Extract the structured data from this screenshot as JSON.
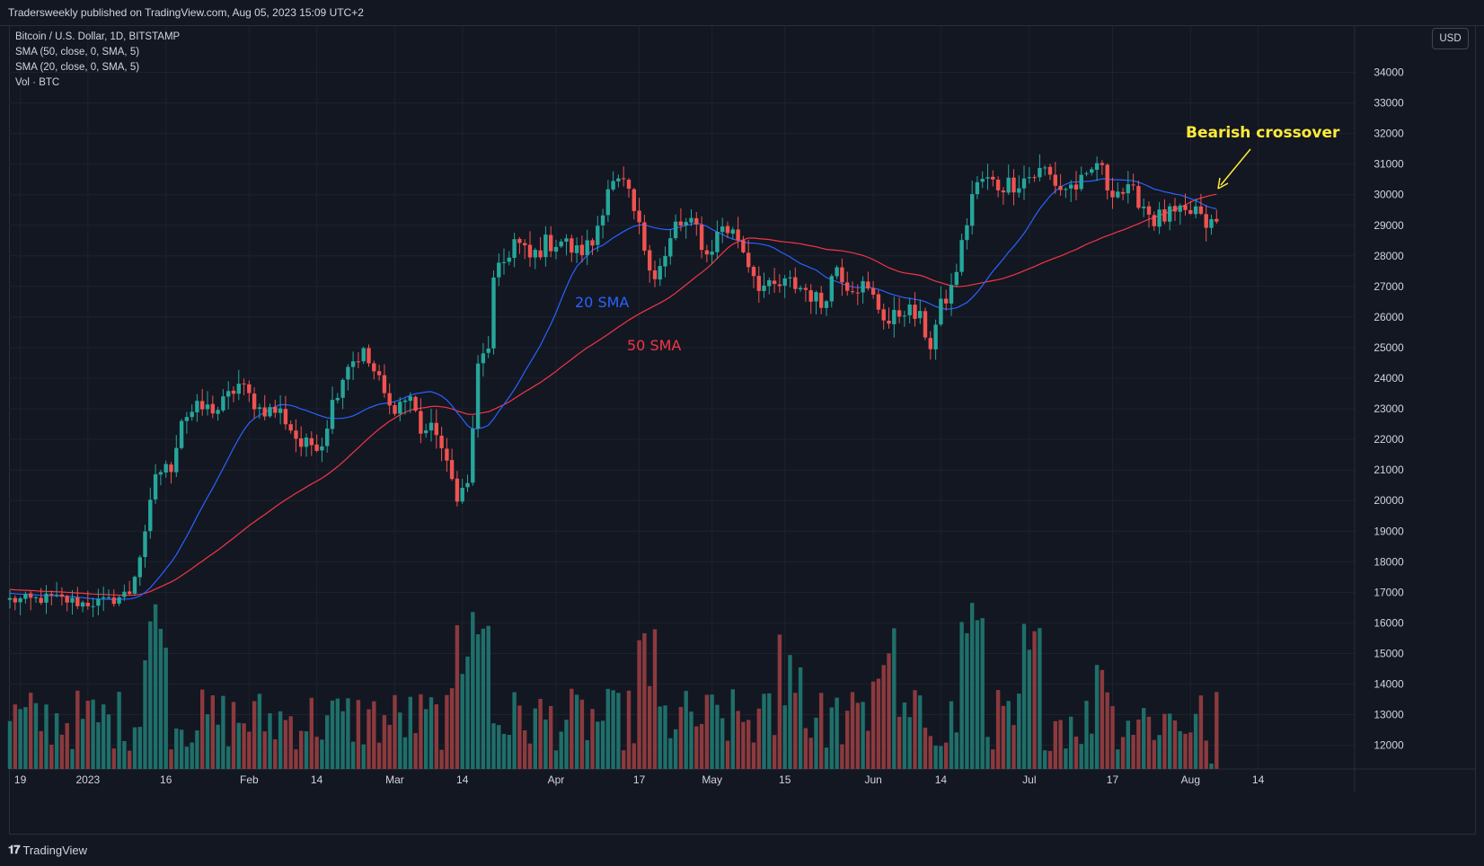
{
  "header": {
    "publish_text": "Tradersweekly published on TradingView.com, Aug 05, 2023 15:09 UTC+2"
  },
  "legend": {
    "symbol": "Bitcoin / U.S. Dollar, 1D, BITSTAMP",
    "sma50": "SMA (50, close, 0, SMA, 5)",
    "sma20": "SMA (20, close, 0, SMA, 5)",
    "volume": "Vol · BTC"
  },
  "currency_button": "USD",
  "footer": {
    "logo_text": "TradingView",
    "logo_icon": "tradingview-logo-icon"
  },
  "colors": {
    "up": "#26a69a",
    "down": "#ef5350",
    "vol_up": "#1f6f6a",
    "vol_down": "#8b3a3e",
    "sma20": "#2962ff",
    "sma50": "#f23645",
    "annotation": "#ffeb3b",
    "grid": "#1e222d",
    "background": "#131722"
  },
  "annotations": {
    "sma20_label": "20 SMA",
    "sma50_label": "50 SMA",
    "crossover_label": "Bearish crossover"
  },
  "chart_data": {
    "type": "candlestick",
    "title": "Bitcoin / U.S. Dollar, 1D, BITSTAMP",
    "x_start_date": "2022-12-17",
    "y_range": [
      11000,
      34800
    ],
    "y_ticks": [
      12000,
      13000,
      14000,
      15000,
      16000,
      17000,
      18000,
      19000,
      20000,
      21000,
      22000,
      23000,
      24000,
      25000,
      26000,
      27000,
      28000,
      29000,
      30000,
      31000,
      32000,
      33000,
      34000
    ],
    "x_ticks": [
      {
        "label": "19",
        "day": 2
      },
      {
        "label": "2023",
        "day": 15
      },
      {
        "label": "16",
        "day": 30
      },
      {
        "label": "Feb",
        "day": 46
      },
      {
        "label": "14",
        "day": 59
      },
      {
        "label": "Mar",
        "day": 74
      },
      {
        "label": "14",
        "day": 87
      },
      {
        "label": "Apr",
        "day": 105
      },
      {
        "label": "17",
        "day": 121
      },
      {
        "label": "May",
        "day": 135
      },
      {
        "label": "15",
        "day": 149
      },
      {
        "label": "Jun",
        "day": 166
      },
      {
        "label": "14",
        "day": 179
      },
      {
        "label": "Jul",
        "day": 196
      },
      {
        "label": "17",
        "day": 212
      },
      {
        "label": "Aug",
        "day": 227
      },
      {
        "label": "14",
        "day": 240
      }
    ],
    "close_anchors": [
      [
        0,
        16750
      ],
      [
        4,
        16750
      ],
      [
        8,
        16820
      ],
      [
        14,
        16640
      ],
      [
        19,
        16700
      ],
      [
        23,
        17000
      ],
      [
        26,
        18800
      ],
      [
        28,
        20900
      ],
      [
        31,
        21100
      ],
      [
        33,
        22700
      ],
      [
        36,
        23000
      ],
      [
        40,
        23000
      ],
      [
        44,
        23800
      ],
      [
        48,
        23000
      ],
      [
        52,
        22900
      ],
      [
        56,
        21800
      ],
      [
        60,
        21900
      ],
      [
        62,
        23200
      ],
      [
        65,
        24500
      ],
      [
        68,
        24800
      ],
      [
        71,
        23900
      ],
      [
        73,
        23000
      ],
      [
        77,
        23400
      ],
      [
        79,
        22300
      ],
      [
        82,
        22300
      ],
      [
        84,
        21100
      ],
      [
        86,
        20200
      ],
      [
        88,
        20500
      ],
      [
        90,
        24300
      ],
      [
        92,
        25100
      ],
      [
        93,
        27100
      ],
      [
        97,
        28500
      ],
      [
        100,
        27900
      ],
      [
        103,
        28400
      ],
      [
        106,
        28500
      ],
      [
        109,
        28100
      ],
      [
        112,
        28400
      ],
      [
        115,
        30300
      ],
      [
        118,
        30300
      ],
      [
        120,
        29400
      ],
      [
        122,
        28300
      ],
      [
        124,
        27400
      ],
      [
        126,
        27900
      ],
      [
        128,
        29000
      ],
      [
        130,
        29000
      ],
      [
        132,
        28900
      ],
      [
        134,
        28000
      ],
      [
        137,
        29000
      ],
      [
        140,
        28600
      ],
      [
        142,
        27800
      ],
      [
        144,
        27100
      ],
      [
        146,
        26900
      ],
      [
        150,
        27100
      ],
      [
        153,
        26900
      ],
      [
        156,
        26400
      ],
      [
        159,
        27700
      ],
      [
        161,
        27100
      ],
      [
        164,
        27000
      ],
      [
        166,
        26600
      ],
      [
        169,
        25800
      ],
      [
        172,
        26300
      ],
      [
        175,
        25900
      ],
      [
        177,
        25100
      ],
      [
        179,
        26300
      ],
      [
        181,
        26900
      ],
      [
        183,
        28300
      ],
      [
        185,
        30000
      ],
      [
        187,
        30500
      ],
      [
        190,
        30300
      ],
      [
        193,
        30400
      ],
      [
        196,
        30600
      ],
      [
        199,
        30800
      ],
      [
        202,
        30200
      ],
      [
        205,
        30300
      ],
      [
        207,
        30400
      ],
      [
        209,
        31100
      ],
      [
        211,
        30300
      ],
      [
        214,
        30100
      ],
      [
        217,
        29900
      ],
      [
        220,
        29200
      ],
      [
        223,
        29300
      ],
      [
        226,
        29300
      ],
      [
        228,
        29500
      ],
      [
        229,
        29100
      ],
      [
        231,
        29000
      ],
      [
        232,
        29050
      ]
    ],
    "series": [
      {
        "name": "SMA (20, close, 0, SMA, 5)",
        "period": 20
      },
      {
        "name": "SMA (50, close, 0, SMA, 5)",
        "period": 50
      },
      {
        "name": "Vol · BTC",
        "unit": "BTC"
      }
    ],
    "annotation": {
      "label": "Bearish crossover",
      "at_day": 228,
      "at_price": 29900
    }
  }
}
